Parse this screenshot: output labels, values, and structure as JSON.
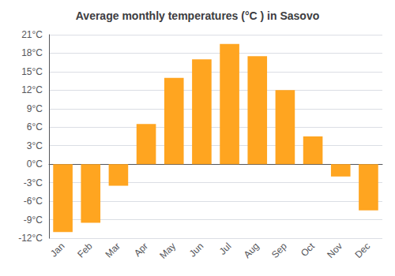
{
  "chart_data": {
    "type": "bar",
    "title": "Average monthly temperatures (°C ) in Sasovo",
    "categories": [
      "Jan",
      "Feb",
      "Mar",
      "Apr",
      "May",
      "Jun",
      "Jul",
      "Aug",
      "Sep",
      "Oct",
      "Nov",
      "Dec"
    ],
    "values": [
      -11.0,
      -9.5,
      -3.5,
      6.5,
      14.0,
      17.0,
      19.5,
      17.5,
      12.0,
      4.5,
      -2.0,
      -7.5
    ],
    "color": "#FFA520",
    "ylim": [
      -12,
      21
    ],
    "yticks": [
      {
        "value": -12,
        "label": "-12°C"
      },
      {
        "value": -9,
        "label": "-9°C"
      },
      {
        "value": -6,
        "label": "-6°C"
      },
      {
        "value": -3,
        "label": "-3°C"
      },
      {
        "value": 0,
        "label": "0°C"
      },
      {
        "value": 3,
        "label": "3°C"
      },
      {
        "value": 6,
        "label": "6°C"
      },
      {
        "value": 9,
        "label": "9°C"
      },
      {
        "value": 12,
        "label": "12°C"
      },
      {
        "value": 15,
        "label": "15°C"
      },
      {
        "value": 18,
        "label": "18°C"
      },
      {
        "value": 21,
        "label": "21°C"
      }
    ],
    "grid": true
  }
}
